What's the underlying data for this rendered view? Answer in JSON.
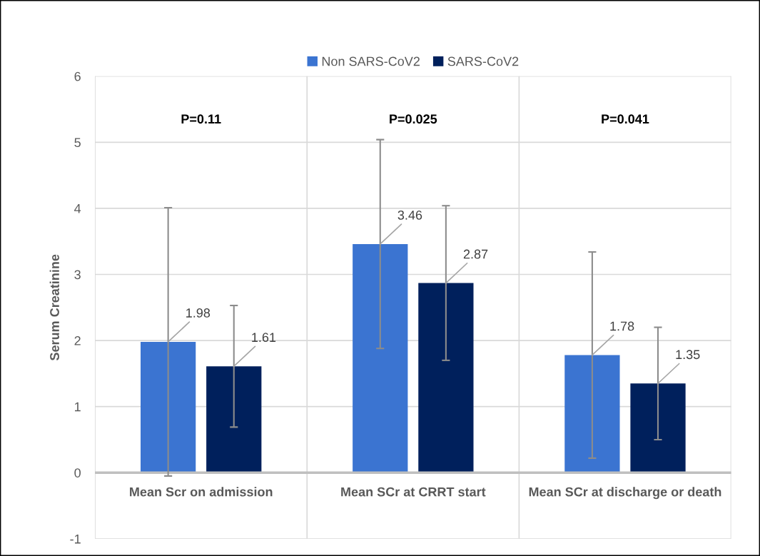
{
  "chart_data": {
    "type": "bar",
    "ylabel": "Serum Creatinine",
    "categories": [
      "Mean Scr on admission",
      "Mean SCr at CRRT start",
      "Mean SCr at discharge or death"
    ],
    "series": [
      {
        "name": "Non SARS-CoV2",
        "color": "#3b74d1",
        "values": [
          1.98,
          3.46,
          1.78
        ],
        "errors": [
          2.03,
          1.58,
          1.56
        ]
      },
      {
        "name": "SARS-CoV2",
        "color": "#00205c",
        "values": [
          1.61,
          2.87,
          1.35
        ],
        "errors": [
          0.92,
          1.17,
          0.85
        ]
      }
    ],
    "ylim": [
      -1,
      6
    ],
    "yticks": [
      -1,
      0,
      1,
      2,
      3,
      4,
      5,
      6
    ],
    "grid": true,
    "legend": "top",
    "data_labels": true,
    "annotations": [
      "P=0.11",
      "P=0.025",
      "P=0.041"
    ]
  }
}
